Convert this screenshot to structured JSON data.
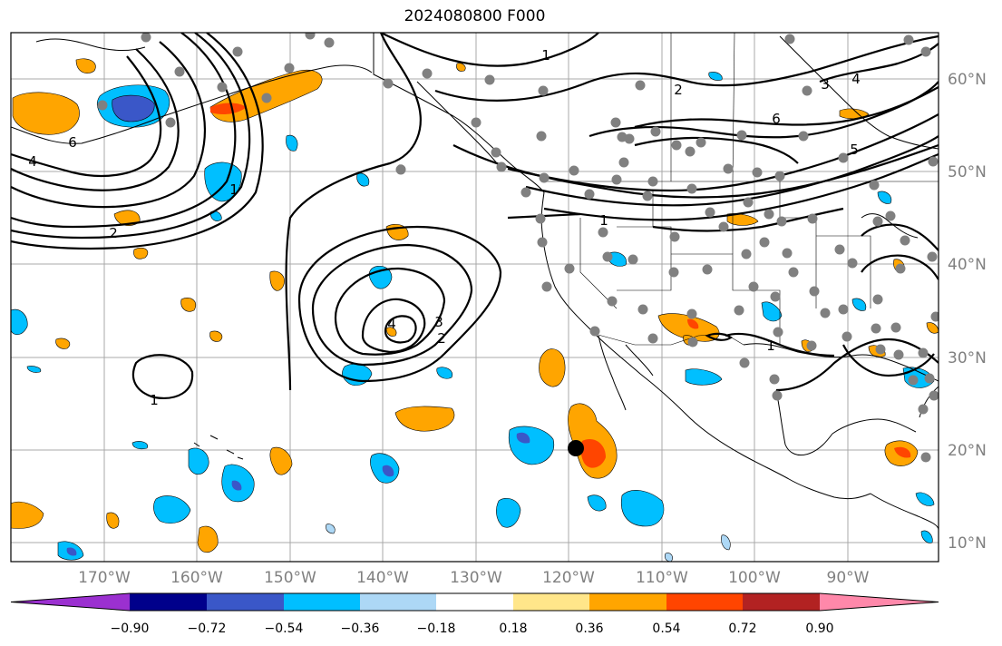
{
  "title": "2024080800 F000",
  "map": {
    "lat_labels": [
      "60°N",
      "50°N",
      "40°N",
      "30°N",
      "20°N",
      "10°N"
    ],
    "lon_labels": [
      "170°W",
      "160°W",
      "150°W",
      "140°W",
      "130°W",
      "120°W",
      "110°W",
      "100°W",
      "90°W"
    ],
    "contour_labels": [
      "1",
      "2",
      "3",
      "4",
      "5",
      "6"
    ],
    "marker": {
      "lat": 20,
      "lon": -119
    }
  },
  "colorbar": {
    "tick_labels": [
      "−0.90",
      "−0.72",
      "−0.54",
      "−0.36",
      "−0.18",
      "0.18",
      "0.36",
      "0.54",
      "0.72",
      "0.90"
    ],
    "colors": [
      "#9b30d0",
      "#00008b",
      "#3a57c8",
      "#00bfff",
      "#add8f6",
      "#ffffff",
      "#ffe68a",
      "#ffa500",
      "#ff4500",
      "#b22222",
      "#ff88aa"
    ]
  }
}
